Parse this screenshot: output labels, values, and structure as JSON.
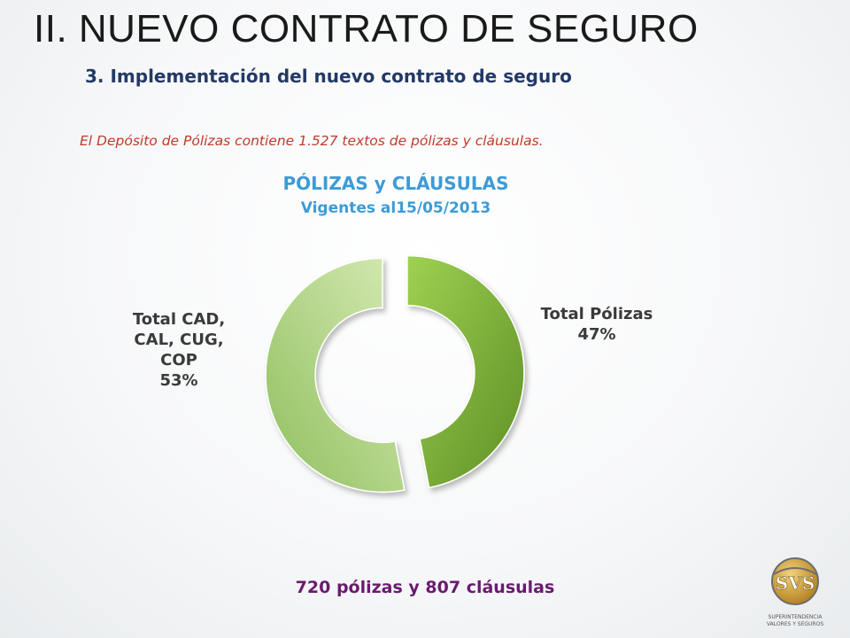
{
  "slide": {
    "title": "II.  NUEVO CONTRATO DE SEGURO",
    "subtitle": "3. Implementación del nuevo contrato de seguro",
    "note": "El Depósito de Pólizas contiene 1.527 textos de pólizas y cláusulas.",
    "footer": "720 pólizas  y  807 cláusulas",
    "logo": {
      "monogram": "SVS",
      "line1": "SUPERINTENDENCIA",
      "line2": "VALORES Y SEGUROS"
    }
  },
  "chart_data": {
    "type": "pie",
    "variant": "doughnut-exploded",
    "title": "PÓLIZAS y CLÁUSULAS",
    "subtitle": "Vigentes al15/05/2013",
    "slices": [
      {
        "label_lines": [
          "Total Pólizas",
          "47%"
        ],
        "value": 47,
        "color": "#7fae3e"
      },
      {
        "label_lines": [
          "Total CAD,",
          "CAL, CUG,",
          "COP",
          "53%"
        ],
        "value": 53,
        "color": "#b5d48a"
      }
    ],
    "colors": {
      "title": "#3d9bd6",
      "labels": "#3a3a3a"
    }
  }
}
